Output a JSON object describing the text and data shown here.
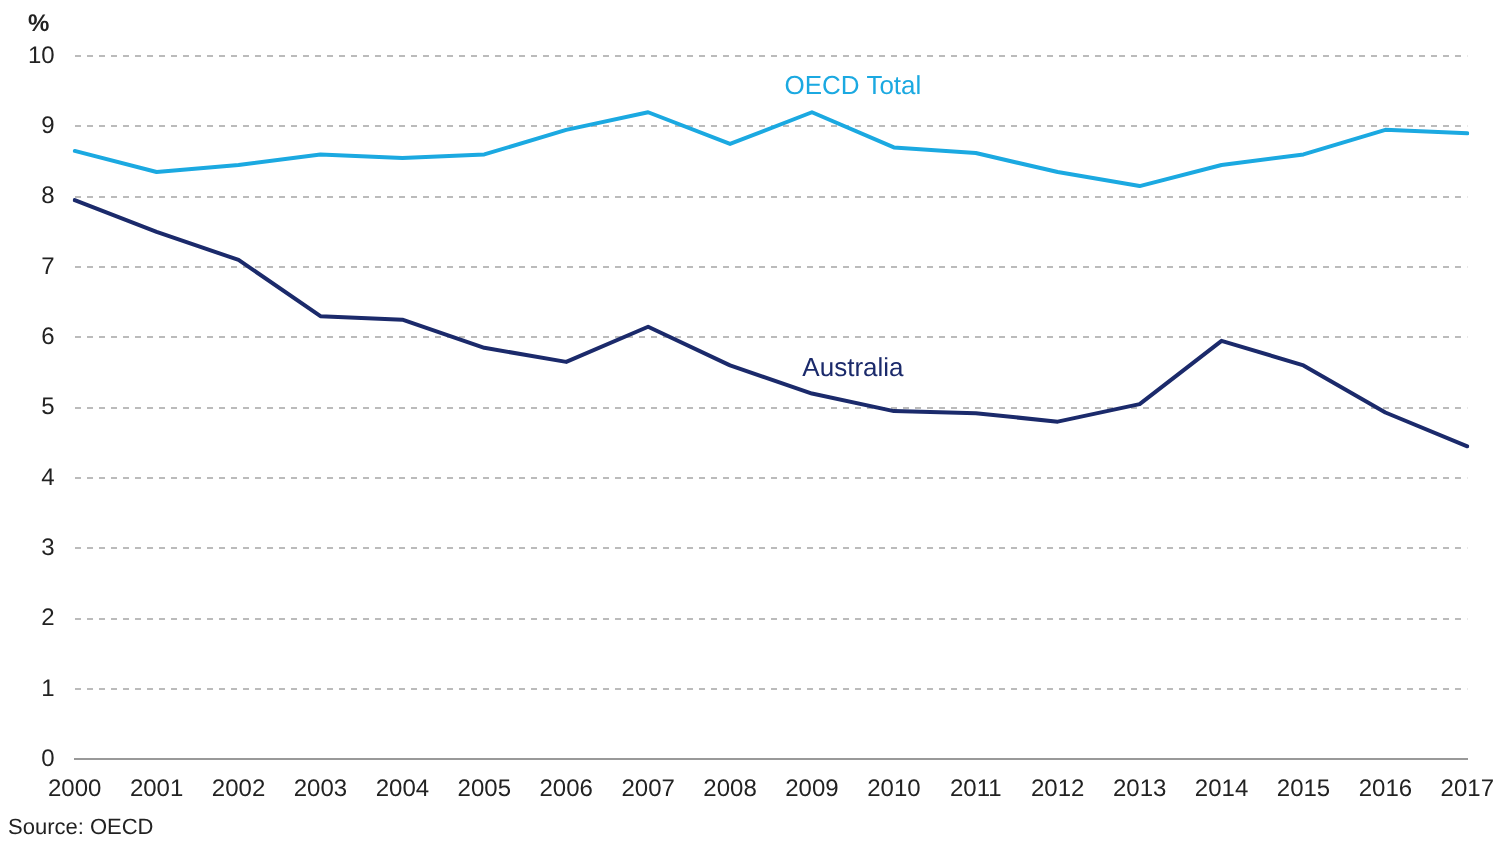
{
  "chart_data": {
    "type": "line",
    "ylabel": "%",
    "categories": [
      "2000",
      "2001",
      "2002",
      "2003",
      "2004",
      "2005",
      "2006",
      "2007",
      "2008",
      "2009",
      "2010",
      "2011",
      "2012",
      "2013",
      "2014",
      "2015",
      "2016",
      "2017"
    ],
    "series": [
      {
        "name": "OECD Total",
        "color": "#1ba9e1",
        "values": [
          8.65,
          8.35,
          8.45,
          8.6,
          8.55,
          8.6,
          8.95,
          9.2,
          8.75,
          9.2,
          8.7,
          8.62,
          8.35,
          8.15,
          8.45,
          8.6,
          8.95,
          8.9
        ]
      },
      {
        "name": "Australia",
        "color": "#1b2a6b",
        "values": [
          7.95,
          7.5,
          7.1,
          6.3,
          6.25,
          5.85,
          5.65,
          6.15,
          5.6,
          5.2,
          4.95,
          4.92,
          4.8,
          5.05,
          5.95,
          5.6,
          4.93,
          4.45
        ]
      }
    ],
    "ylim": [
      0,
      10
    ],
    "yticks": [
      0,
      1,
      2,
      3,
      4,
      5,
      6,
      7,
      8,
      9,
      10
    ],
    "grid": "y",
    "legend": false,
    "marker": "none",
    "line_style": "solid",
    "annotations": [
      "Source: OECD"
    ]
  }
}
